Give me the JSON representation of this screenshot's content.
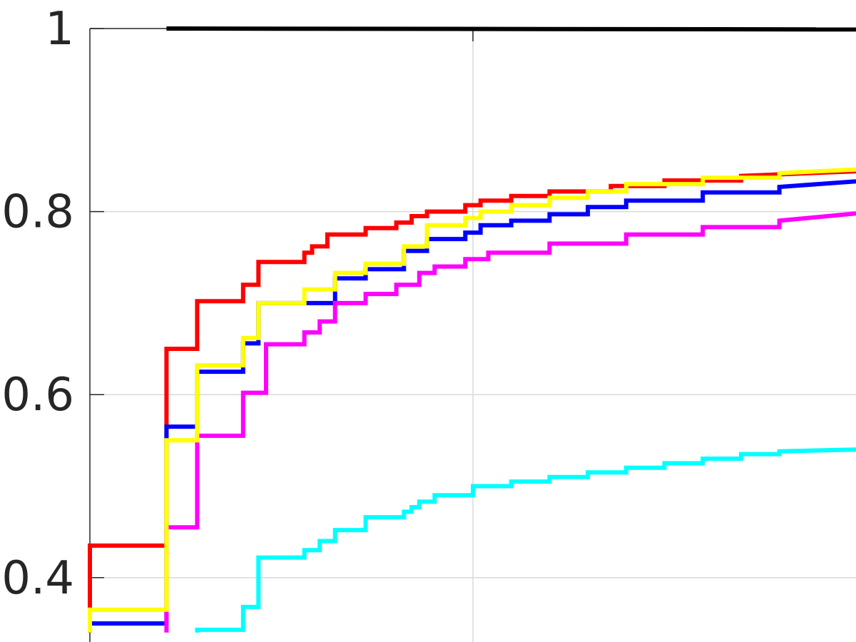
{
  "chart_data": {
    "type": "line",
    "title": "",
    "xlabel": "",
    "ylabel": "",
    "ylim": [
      0.35,
      1.0
    ],
    "xlim": [
      0,
      10
    ],
    "grid": true,
    "y_ticks": [
      {
        "value": 1.0,
        "label": "1"
      },
      {
        "value": 0.8,
        "label": "0.8"
      },
      {
        "value": 0.6,
        "label": "0.6"
      },
      {
        "value": 0.4,
        "label": "0.4"
      }
    ],
    "x_grid_values": [
      5.0
    ],
    "series": [
      {
        "color": "#000000",
        "width": 6,
        "points": [
          [
            1.0,
            1.0
          ],
          [
            10.0,
            0.999
          ]
        ]
      },
      {
        "color": "#ff0000",
        "width": 6,
        "points": [
          [
            0.0,
            0.34
          ],
          [
            0.0,
            0.435
          ],
          [
            1.0,
            0.435
          ],
          [
            1.0,
            0.65
          ],
          [
            1.4,
            0.65
          ],
          [
            1.4,
            0.702
          ],
          [
            2.0,
            0.702
          ],
          [
            2.0,
            0.72
          ],
          [
            2.2,
            0.72
          ],
          [
            2.2,
            0.745
          ],
          [
            2.8,
            0.745
          ],
          [
            2.8,
            0.755
          ],
          [
            2.9,
            0.755
          ],
          [
            2.9,
            0.762
          ],
          [
            3.1,
            0.762
          ],
          [
            3.1,
            0.775
          ],
          [
            3.6,
            0.775
          ],
          [
            3.6,
            0.782
          ],
          [
            4.0,
            0.782
          ],
          [
            4.0,
            0.788
          ],
          [
            4.2,
            0.788
          ],
          [
            4.2,
            0.795
          ],
          [
            4.4,
            0.795
          ],
          [
            4.4,
            0.8
          ],
          [
            4.9,
            0.8
          ],
          [
            4.9,
            0.807
          ],
          [
            5.1,
            0.807
          ],
          [
            5.1,
            0.812
          ],
          [
            5.5,
            0.812
          ],
          [
            5.5,
            0.817
          ],
          [
            6.0,
            0.817
          ],
          [
            6.0,
            0.822
          ],
          [
            6.8,
            0.822
          ],
          [
            6.8,
            0.828
          ],
          [
            7.5,
            0.828
          ],
          [
            7.5,
            0.834
          ],
          [
            8.5,
            0.834
          ],
          [
            8.5,
            0.839
          ],
          [
            10.0,
            0.844
          ]
        ]
      },
      {
        "color": "#0000ff",
        "width": 6,
        "points": [
          [
            0.0,
            0.34
          ],
          [
            0.0,
            0.35
          ],
          [
            1.0,
            0.35
          ],
          [
            1.0,
            0.565
          ],
          [
            1.4,
            0.565
          ],
          [
            1.4,
            0.625
          ],
          [
            2.0,
            0.625
          ],
          [
            2.0,
            0.656
          ],
          [
            2.2,
            0.656
          ],
          [
            2.2,
            0.7
          ],
          [
            3.2,
            0.7
          ],
          [
            3.2,
            0.727
          ],
          [
            3.6,
            0.727
          ],
          [
            3.6,
            0.737
          ],
          [
            4.1,
            0.737
          ],
          [
            4.1,
            0.757
          ],
          [
            4.4,
            0.757
          ],
          [
            4.4,
            0.77
          ],
          [
            4.9,
            0.77
          ],
          [
            4.9,
            0.777
          ],
          [
            5.1,
            0.777
          ],
          [
            5.1,
            0.785
          ],
          [
            5.5,
            0.785
          ],
          [
            5.5,
            0.79
          ],
          [
            6.0,
            0.79
          ],
          [
            6.0,
            0.797
          ],
          [
            6.5,
            0.797
          ],
          [
            6.5,
            0.805
          ],
          [
            7.0,
            0.805
          ],
          [
            7.0,
            0.812
          ],
          [
            8.0,
            0.812
          ],
          [
            8.0,
            0.821
          ],
          [
            9.0,
            0.821
          ],
          [
            9.0,
            0.827
          ],
          [
            10.0,
            0.833
          ]
        ]
      },
      {
        "color": "#ff00ff",
        "width": 6,
        "points": [
          [
            1.0,
            0.34
          ],
          [
            1.0,
            0.455
          ],
          [
            1.4,
            0.455
          ],
          [
            1.4,
            0.555
          ],
          [
            2.0,
            0.555
          ],
          [
            2.0,
            0.602
          ],
          [
            2.3,
            0.602
          ],
          [
            2.3,
            0.655
          ],
          [
            2.8,
            0.655
          ],
          [
            2.8,
            0.668
          ],
          [
            3.0,
            0.668
          ],
          [
            3.0,
            0.68
          ],
          [
            3.2,
            0.68
          ],
          [
            3.2,
            0.7
          ],
          [
            3.6,
            0.7
          ],
          [
            3.6,
            0.71
          ],
          [
            4.0,
            0.71
          ],
          [
            4.0,
            0.72
          ],
          [
            4.3,
            0.72
          ],
          [
            4.3,
            0.733
          ],
          [
            4.5,
            0.733
          ],
          [
            4.5,
            0.74
          ],
          [
            4.9,
            0.74
          ],
          [
            4.9,
            0.748
          ],
          [
            5.2,
            0.748
          ],
          [
            5.2,
            0.755
          ],
          [
            6.0,
            0.755
          ],
          [
            6.0,
            0.765
          ],
          [
            7.0,
            0.765
          ],
          [
            7.0,
            0.775
          ],
          [
            8.0,
            0.775
          ],
          [
            8.0,
            0.783
          ],
          [
            9.0,
            0.783
          ],
          [
            9.0,
            0.79
          ],
          [
            10.0,
            0.798
          ]
        ]
      },
      {
        "color": "#ffff00",
        "width": 6,
        "points": [
          [
            0.0,
            0.34
          ],
          [
            0.0,
            0.365
          ],
          [
            1.0,
            0.365
          ],
          [
            1.0,
            0.55
          ],
          [
            1.4,
            0.55
          ],
          [
            1.4,
            0.632
          ],
          [
            2.0,
            0.632
          ],
          [
            2.0,
            0.662
          ],
          [
            2.2,
            0.662
          ],
          [
            2.2,
            0.7
          ],
          [
            2.8,
            0.7
          ],
          [
            2.8,
            0.715
          ],
          [
            3.2,
            0.715
          ],
          [
            3.2,
            0.733
          ],
          [
            3.6,
            0.733
          ],
          [
            3.6,
            0.743
          ],
          [
            4.1,
            0.743
          ],
          [
            4.1,
            0.762
          ],
          [
            4.4,
            0.762
          ],
          [
            4.4,
            0.785
          ],
          [
            4.9,
            0.785
          ],
          [
            4.9,
            0.793
          ],
          [
            5.1,
            0.793
          ],
          [
            5.1,
            0.8
          ],
          [
            5.5,
            0.8
          ],
          [
            5.5,
            0.807
          ],
          [
            6.0,
            0.807
          ],
          [
            6.0,
            0.815
          ],
          [
            6.5,
            0.815
          ],
          [
            6.5,
            0.822
          ],
          [
            7.0,
            0.822
          ],
          [
            7.0,
            0.83
          ],
          [
            8.0,
            0.83
          ],
          [
            8.0,
            0.837
          ],
          [
            9.0,
            0.837
          ],
          [
            9.0,
            0.842
          ],
          [
            10.0,
            0.846
          ]
        ]
      },
      {
        "color": "#00ffff",
        "width": 6,
        "points": [
          [
            1.4,
            0.34
          ],
          [
            1.4,
            0.343
          ],
          [
            2.0,
            0.343
          ],
          [
            2.0,
            0.368
          ],
          [
            2.2,
            0.368
          ],
          [
            2.2,
            0.422
          ],
          [
            2.8,
            0.422
          ],
          [
            2.8,
            0.43
          ],
          [
            3.0,
            0.43
          ],
          [
            3.0,
            0.44
          ],
          [
            3.2,
            0.44
          ],
          [
            3.2,
            0.452
          ],
          [
            3.6,
            0.452
          ],
          [
            3.6,
            0.466
          ],
          [
            4.1,
            0.466
          ],
          [
            4.1,
            0.472
          ],
          [
            4.2,
            0.472
          ],
          [
            4.2,
            0.477
          ],
          [
            4.3,
            0.477
          ],
          [
            4.3,
            0.483
          ],
          [
            4.5,
            0.483
          ],
          [
            4.5,
            0.49
          ],
          [
            5.0,
            0.49
          ],
          [
            5.0,
            0.5
          ],
          [
            5.5,
            0.5
          ],
          [
            5.5,
            0.505
          ],
          [
            6.0,
            0.505
          ],
          [
            6.0,
            0.51
          ],
          [
            6.5,
            0.51
          ],
          [
            6.5,
            0.515
          ],
          [
            7.0,
            0.515
          ],
          [
            7.0,
            0.52
          ],
          [
            7.5,
            0.52
          ],
          [
            7.5,
            0.525
          ],
          [
            8.0,
            0.525
          ],
          [
            8.0,
            0.53
          ],
          [
            8.5,
            0.53
          ],
          [
            8.5,
            0.535
          ],
          [
            9.0,
            0.535
          ],
          [
            9.0,
            0.538
          ],
          [
            10.0,
            0.54
          ]
        ]
      }
    ]
  }
}
